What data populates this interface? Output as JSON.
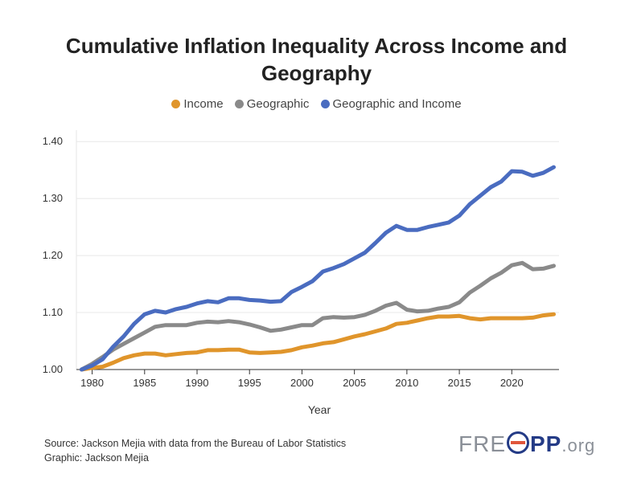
{
  "title_lines": [
    "Cumulative Inflation Inequality Across Income and",
    "Geography"
  ],
  "legend": [
    {
      "label": "Income",
      "color": "#e0952b"
    },
    {
      "label": "Geographic",
      "color": "#8a8a8a"
    },
    {
      "label": "Geographic and Income",
      "color": "#4a6cc0"
    }
  ],
  "source_lines": [
    "Source: Jackson Mejia with data from the Bureau of Labor Statistics",
    "Graphic: Jackson Mejia"
  ],
  "logo": {
    "main": "FRE",
    "pp": "PP",
    "suffix": ".org"
  },
  "chart_data": {
    "type": "line",
    "title": "Cumulative Inflation Inequality Across Income and Geography",
    "xlabel": "Year",
    "ylabel": "",
    "xlim": [
      1978.5,
      2024.5
    ],
    "ylim": [
      1.0,
      1.42
    ],
    "x_ticks": [
      1980,
      1985,
      1990,
      1995,
      2000,
      2005,
      2010,
      2015,
      2020
    ],
    "y_ticks": [
      1.0,
      1.1,
      1.2,
      1.3,
      1.4
    ],
    "y_tick_labels": [
      "1.00",
      "1.10",
      "1.20",
      "1.30",
      "1.40"
    ],
    "grid": true,
    "x": [
      1979,
      1980,
      1981,
      1982,
      1983,
      1984,
      1985,
      1986,
      1987,
      1988,
      1989,
      1990,
      1991,
      1992,
      1993,
      1994,
      1995,
      1996,
      1997,
      1998,
      1999,
      2000,
      2001,
      2002,
      2003,
      2004,
      2005,
      2006,
      2007,
      2008,
      2009,
      2010,
      2011,
      2012,
      2013,
      2014,
      2015,
      2016,
      2017,
      2018,
      2019,
      2020,
      2021,
      2022,
      2023,
      2024
    ],
    "series": [
      {
        "name": "Income",
        "color": "#e0952b",
        "values": [
          1.0,
          1.003,
          1.005,
          1.012,
          1.02,
          1.025,
          1.028,
          1.028,
          1.025,
          1.027,
          1.029,
          1.03,
          1.034,
          1.034,
          1.035,
          1.035,
          1.03,
          1.029,
          1.03,
          1.031,
          1.034,
          1.039,
          1.042,
          1.046,
          1.048,
          1.053,
          1.058,
          1.062,
          1.067,
          1.072,
          1.08,
          1.082,
          1.086,
          1.09,
          1.093,
          1.093,
          1.094,
          1.09,
          1.088,
          1.09,
          1.09,
          1.09,
          1.09,
          1.091,
          1.095,
          1.097
        ]
      },
      {
        "name": "Geographic",
        "color": "#8a8a8a",
        "values": [
          1.0,
          1.01,
          1.022,
          1.035,
          1.045,
          1.055,
          1.065,
          1.075,
          1.078,
          1.078,
          1.078,
          1.082,
          1.084,
          1.083,
          1.085,
          1.083,
          1.079,
          1.074,
          1.068,
          1.07,
          1.074,
          1.078,
          1.078,
          1.09,
          1.092,
          1.091,
          1.092,
          1.096,
          1.103,
          1.112,
          1.117,
          1.105,
          1.102,
          1.103,
          1.107,
          1.11,
          1.118,
          1.135,
          1.147,
          1.16,
          1.17,
          1.183,
          1.187,
          1.176,
          1.177,
          1.182
        ]
      },
      {
        "name": "Geographic and Income",
        "color": "#4a6cc0",
        "values": [
          1.0,
          1.007,
          1.018,
          1.04,
          1.058,
          1.08,
          1.097,
          1.103,
          1.1,
          1.106,
          1.11,
          1.116,
          1.12,
          1.118,
          1.125,
          1.125,
          1.122,
          1.121,
          1.119,
          1.12,
          1.136,
          1.145,
          1.155,
          1.172,
          1.178,
          1.185,
          1.195,
          1.205,
          1.222,
          1.24,
          1.252,
          1.245,
          1.245,
          1.25,
          1.254,
          1.258,
          1.27,
          1.29,
          1.305,
          1.32,
          1.33,
          1.348,
          1.347,
          1.34,
          1.345,
          1.355
        ]
      }
    ]
  }
}
